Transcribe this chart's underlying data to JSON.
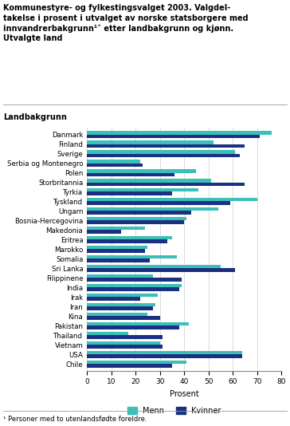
{
  "title_line1": "Kommunestyre- og fylkestingsvalget 2003. Valgdel-",
  "title_line2": "takelse i prosent i utvalget av norske statsborgere med",
  "title_line3": "innvandrerbakgrunn¹˄ etter landbakgrunn og kjønn.",
  "title_line4": "Utvalgte land",
  "xlabel": "Prosent",
  "ylabel": "Landbakgrunn",
  "xlim": [
    0,
    80
  ],
  "xticks": [
    0,
    10,
    20,
    30,
    40,
    50,
    60,
    70,
    80
  ],
  "countries": [
    "Danmark",
    "Finland",
    "Sverige",
    "Serbia og Montenegro",
    "Polen",
    "Storbritannia",
    "Tyrkia",
    "Tyskland",
    "Ungarn",
    "Bosnia-Hercegovina",
    "Makedonia",
    "Eritrea",
    "Marokko",
    "Somalia",
    "Sri Lanka",
    "Filippinene",
    "India",
    "Irak",
    "Iran",
    "Kina",
    "Pakistan",
    "Thailand",
    "Vietnam",
    "USA",
    "Chile"
  ],
  "menn": [
    76,
    52,
    61,
    22,
    45,
    51,
    46,
    70,
    54,
    41,
    24,
    35,
    25,
    37,
    55,
    27,
    39,
    29,
    28,
    25,
    42,
    17,
    30,
    64,
    41
  ],
  "kvinner": [
    71,
    65,
    63,
    23,
    36,
    65,
    35,
    59,
    43,
    40,
    14,
    33,
    24,
    26,
    61,
    39,
    38,
    22,
    27,
    30,
    38,
    31,
    31,
    64,
    35
  ],
  "color_menn": "#3cbfb8",
  "color_kvinner": "#1a3080",
  "footnote": "¹ Personer med to utenlandsfødte foreldre.",
  "grid_color": "#cccccc"
}
